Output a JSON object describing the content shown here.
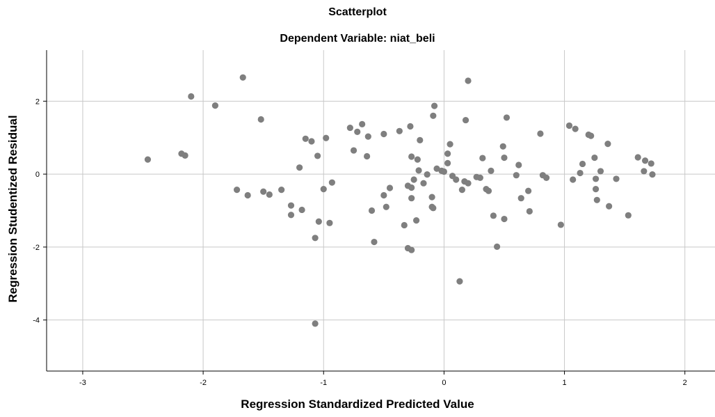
{
  "chart_data": {
    "type": "scatter",
    "title": "Scatterplot",
    "subtitle": "Dependent Variable: niat_beli",
    "xlabel": "Regression Standardized Predicted Value",
    "ylabel": "Regression Studentized Residual",
    "xlim": [
      -3.3,
      2.25
    ],
    "ylim": [
      -5.4,
      3.4
    ],
    "x_ticks": [
      -3,
      -2,
      -1,
      0,
      1,
      2
    ],
    "y_ticks": [
      -4,
      -2,
      0,
      2
    ],
    "grid": true,
    "legend": "none",
    "point_color": "#7f7f7f",
    "grid_color": "#c8c8c8",
    "points": [
      {
        "x": -2.46,
        "y": 0.4
      },
      {
        "x": -2.18,
        "y": 0.56
      },
      {
        "x": -2.15,
        "y": 0.51
      },
      {
        "x": -2.1,
        "y": 2.13
      },
      {
        "x": -1.9,
        "y": 1.88
      },
      {
        "x": -1.67,
        "y": 2.65
      },
      {
        "x": -1.72,
        "y": -0.43
      },
      {
        "x": -1.63,
        "y": -0.58
      },
      {
        "x": -1.52,
        "y": 1.5
      },
      {
        "x": -1.5,
        "y": -0.48
      },
      {
        "x": -1.45,
        "y": -0.56
      },
      {
        "x": -1.35,
        "y": -0.43
      },
      {
        "x": -1.27,
        "y": -0.86
      },
      {
        "x": -1.27,
        "y": -1.12
      },
      {
        "x": -1.2,
        "y": 0.18
      },
      {
        "x": -1.18,
        "y": -0.98
      },
      {
        "x": -1.15,
        "y": 0.97
      },
      {
        "x": -1.1,
        "y": 0.9
      },
      {
        "x": -1.07,
        "y": -1.75
      },
      {
        "x": -1.07,
        "y": -4.1
      },
      {
        "x": -1.05,
        "y": 0.5
      },
      {
        "x": -1.04,
        "y": -1.3
      },
      {
        "x": -1.0,
        "y": -0.41
      },
      {
        "x": -0.98,
        "y": 0.99
      },
      {
        "x": -0.95,
        "y": -1.34
      },
      {
        "x": -0.93,
        "y": -0.23
      },
      {
        "x": -0.78,
        "y": 1.27
      },
      {
        "x": -0.75,
        "y": 0.65
      },
      {
        "x": -0.72,
        "y": 1.16
      },
      {
        "x": -0.68,
        "y": 1.37
      },
      {
        "x": -0.64,
        "y": 0.49
      },
      {
        "x": -0.63,
        "y": 1.03
      },
      {
        "x": -0.6,
        "y": -1.0
      },
      {
        "x": -0.58,
        "y": -1.86
      },
      {
        "x": -0.5,
        "y": 1.1
      },
      {
        "x": -0.5,
        "y": -0.58
      },
      {
        "x": -0.48,
        "y": -0.9
      },
      {
        "x": -0.45,
        "y": -0.38
      },
      {
        "x": -0.37,
        "y": 1.18
      },
      {
        "x": -0.33,
        "y": -1.4
      },
      {
        "x": -0.3,
        "y": -0.32
      },
      {
        "x": -0.3,
        "y": -2.03
      },
      {
        "x": -0.28,
        "y": 1.31
      },
      {
        "x": -0.27,
        "y": 0.48
      },
      {
        "x": -0.27,
        "y": -0.37
      },
      {
        "x": -0.27,
        "y": -0.66
      },
      {
        "x": -0.27,
        "y": -2.08
      },
      {
        "x": -0.25,
        "y": -0.15
      },
      {
        "x": -0.23,
        "y": -1.27
      },
      {
        "x": -0.22,
        "y": 0.4
      },
      {
        "x": -0.21,
        "y": 0.1
      },
      {
        "x": -0.2,
        "y": 0.93
      },
      {
        "x": -0.17,
        "y": -0.25
      },
      {
        "x": -0.14,
        "y": -0.01
      },
      {
        "x": -0.1,
        "y": -0.63
      },
      {
        "x": -0.1,
        "y": -0.9
      },
      {
        "x": -0.09,
        "y": -0.93
      },
      {
        "x": -0.09,
        "y": 1.6
      },
      {
        "x": -0.08,
        "y": 1.87
      },
      {
        "x": -0.06,
        "y": 0.15
      },
      {
        "x": -0.02,
        "y": 0.09
      },
      {
        "x": 0.0,
        "y": 0.07
      },
      {
        "x": 0.03,
        "y": 0.3
      },
      {
        "x": 0.03,
        "y": 0.56
      },
      {
        "x": 0.05,
        "y": 0.82
      },
      {
        "x": 0.07,
        "y": -0.05
      },
      {
        "x": 0.1,
        "y": -0.15
      },
      {
        "x": 0.13,
        "y": -2.94
      },
      {
        "x": 0.15,
        "y": -0.43
      },
      {
        "x": 0.17,
        "y": -0.2
      },
      {
        "x": 0.18,
        "y": 1.48
      },
      {
        "x": 0.2,
        "y": 2.56
      },
      {
        "x": 0.2,
        "y": -0.25
      },
      {
        "x": 0.27,
        "y": -0.08
      },
      {
        "x": 0.3,
        "y": -0.1
      },
      {
        "x": 0.32,
        "y": 0.44
      },
      {
        "x": 0.35,
        "y": -0.41
      },
      {
        "x": 0.37,
        "y": -0.46
      },
      {
        "x": 0.39,
        "y": 0.09
      },
      {
        "x": 0.41,
        "y": -1.14
      },
      {
        "x": 0.44,
        "y": -1.99
      },
      {
        "x": 0.49,
        "y": 0.76
      },
      {
        "x": 0.5,
        "y": 0.45
      },
      {
        "x": 0.5,
        "y": -1.23
      },
      {
        "x": 0.52,
        "y": 1.55
      },
      {
        "x": 0.6,
        "y": -0.03
      },
      {
        "x": 0.62,
        "y": 0.25
      },
      {
        "x": 0.64,
        "y": -0.66
      },
      {
        "x": 0.7,
        "y": -0.46
      },
      {
        "x": 0.71,
        "y": -1.02
      },
      {
        "x": 0.8,
        "y": 1.11
      },
      {
        "x": 0.82,
        "y": -0.03
      },
      {
        "x": 0.85,
        "y": -0.1
      },
      {
        "x": 0.97,
        "y": -1.39
      },
      {
        "x": 1.04,
        "y": 1.33
      },
      {
        "x": 1.07,
        "y": -0.15
      },
      {
        "x": 1.09,
        "y": 1.24
      },
      {
        "x": 1.13,
        "y": 0.03
      },
      {
        "x": 1.15,
        "y": 0.28
      },
      {
        "x": 1.2,
        "y": 1.08
      },
      {
        "x": 1.22,
        "y": 1.05
      },
      {
        "x": 1.25,
        "y": 0.45
      },
      {
        "x": 1.26,
        "y": -0.13
      },
      {
        "x": 1.26,
        "y": -0.41
      },
      {
        "x": 1.27,
        "y": -0.71
      },
      {
        "x": 1.3,
        "y": 0.08
      },
      {
        "x": 1.36,
        "y": 0.83
      },
      {
        "x": 1.37,
        "y": -0.88
      },
      {
        "x": 1.43,
        "y": -0.13
      },
      {
        "x": 1.53,
        "y": -1.13
      },
      {
        "x": 1.61,
        "y": 0.46
      },
      {
        "x": 1.66,
        "y": 0.08
      },
      {
        "x": 1.67,
        "y": 0.37
      },
      {
        "x": 1.72,
        "y": 0.29
      },
      {
        "x": 1.73,
        "y": -0.01
      }
    ]
  }
}
